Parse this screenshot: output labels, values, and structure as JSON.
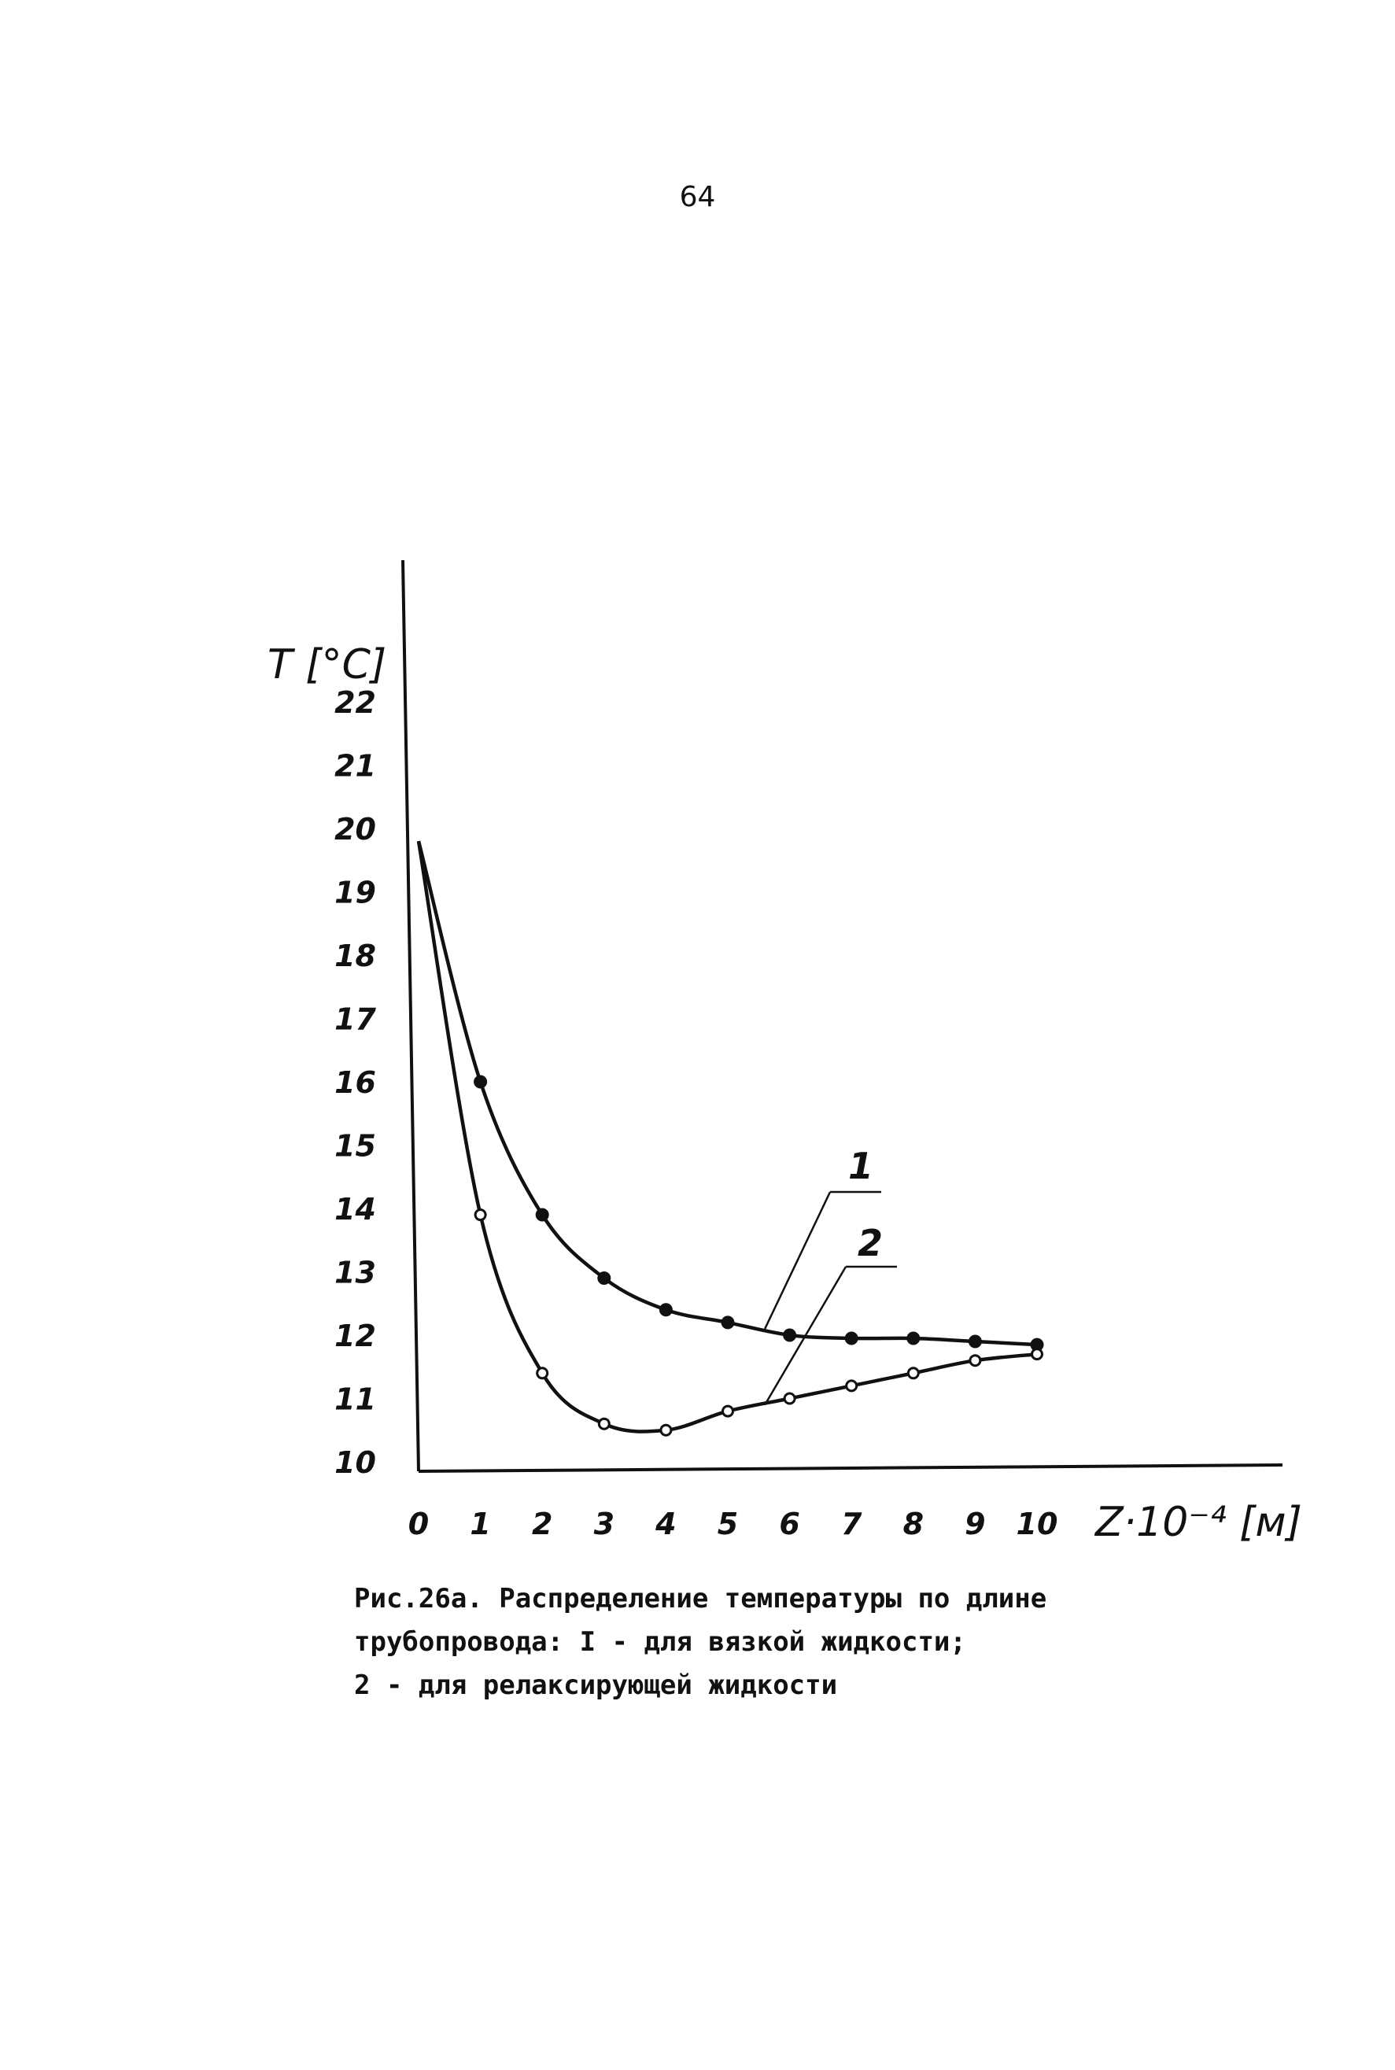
{
  "page_number": "64",
  "caption": {
    "line1": "Рис.26а. Распределение температуры по длине",
    "line2": "трубопровода: I - для вязкой жидкости;",
    "line3": "2 - для релаксирующей жидкости"
  },
  "chart_data": {
    "type": "line",
    "title": "",
    "xlabel": "Z·10⁻⁴ [м]",
    "ylabel": "T [°C]",
    "xlim": [
      0,
      10
    ],
    "ylim": [
      10,
      22
    ],
    "x_ticks": [
      "0",
      "1",
      "2",
      "3",
      "4",
      "5",
      "6",
      "7",
      "8",
      "9",
      "10"
    ],
    "y_ticks": [
      "22",
      "21",
      "20",
      "19",
      "18",
      "17",
      "16",
      "15",
      "14",
      "13",
      "12",
      "11",
      "10"
    ],
    "grid": false,
    "legend": "callout labels on the curves",
    "series": [
      {
        "name": "1",
        "marker": "filled",
        "x": [
          0,
          1,
          2,
          3,
          4,
          5,
          6,
          7,
          8,
          9,
          10
        ],
        "y": [
          19.8,
          16.0,
          13.9,
          12.9,
          12.4,
          12.2,
          12.0,
          11.95,
          11.95,
          11.9,
          11.85
        ]
      },
      {
        "name": "2",
        "marker": "open",
        "x": [
          0,
          1,
          2,
          3,
          4,
          5,
          6,
          7,
          8,
          9,
          10
        ],
        "y": [
          19.8,
          13.9,
          11.4,
          10.6,
          10.5,
          10.8,
          11.0,
          11.2,
          11.4,
          11.6,
          11.7
        ]
      }
    ]
  }
}
